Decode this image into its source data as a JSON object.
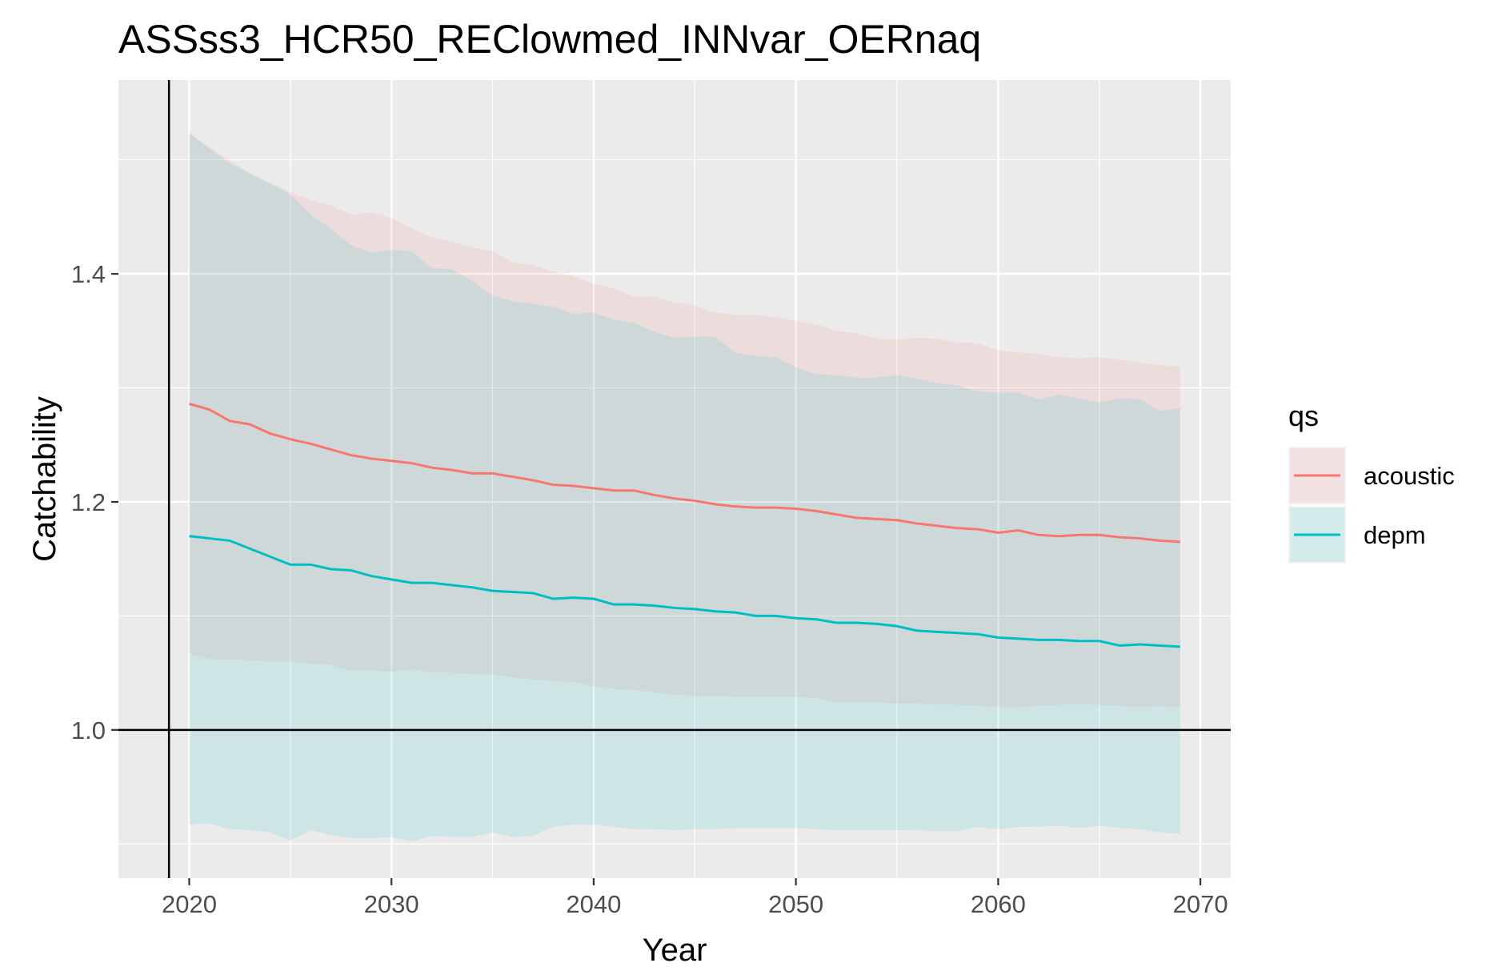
{
  "chart_data": {
    "type": "line",
    "title": "ASSss3_HCR50_REClowmed_INNvar_OERnaq",
    "xlabel": "Year",
    "ylabel": "Catchability",
    "xlim": [
      2016.5,
      2071.5
    ],
    "ylim": [
      0.87,
      1.57
    ],
    "x_ticks": [
      2020,
      2030,
      2040,
      2050,
      2060,
      2070
    ],
    "x_tick_labels": [
      "2020",
      "2030",
      "2040",
      "2050",
      "2060",
      "2070"
    ],
    "y_ticks": [
      1.0,
      1.2,
      1.4
    ],
    "y_tick_labels": [
      "1.0",
      "1.2",
      "1.4"
    ],
    "grid": true,
    "reference_lines": {
      "vertical_x": 2019,
      "horizontal_y": 1.0
    },
    "legend": {
      "title": "qs",
      "position": "right"
    },
    "x": [
      2020,
      2021,
      2022,
      2023,
      2024,
      2025,
      2026,
      2027,
      2028,
      2029,
      2030,
      2031,
      2032,
      2033,
      2034,
      2035,
      2036,
      2037,
      2038,
      2039,
      2040,
      2041,
      2042,
      2043,
      2044,
      2045,
      2046,
      2047,
      2048,
      2049,
      2050,
      2051,
      2052,
      2053,
      2054,
      2055,
      2056,
      2057,
      2058,
      2059,
      2060,
      2061,
      2062,
      2063,
      2064,
      2065,
      2066,
      2067,
      2068,
      2069
    ],
    "series": [
      {
        "name": "acoustic",
        "color": "#F8766D",
        "fill": "#F8766D",
        "values": [
          1.286,
          1.281,
          1.271,
          1.268,
          1.26,
          1.255,
          1.251,
          1.246,
          1.241,
          1.238,
          1.236,
          1.234,
          1.23,
          1.228,
          1.225,
          1.225,
          1.222,
          1.219,
          1.215,
          1.214,
          1.212,
          1.21,
          1.21,
          1.206,
          1.203,
          1.201,
          1.198,
          1.196,
          1.195,
          1.195,
          1.194,
          1.192,
          1.189,
          1.186,
          1.185,
          1.184,
          1.181,
          1.179,
          1.177,
          1.176,
          1.173,
          1.175,
          1.171,
          1.17,
          1.171,
          1.171,
          1.169,
          1.168,
          1.166,
          1.165
        ],
        "lower": [
          1.067,
          1.062,
          1.062,
          1.061,
          1.06,
          1.06,
          1.058,
          1.057,
          1.052,
          1.052,
          1.051,
          1.053,
          1.05,
          1.05,
          1.049,
          1.049,
          1.046,
          1.044,
          1.043,
          1.042,
          1.038,
          1.036,
          1.035,
          1.033,
          1.031,
          1.03,
          1.03,
          1.029,
          1.029,
          1.029,
          1.029,
          1.028,
          1.024,
          1.024,
          1.024,
          1.023,
          1.023,
          1.022,
          1.022,
          1.021,
          1.02,
          1.02,
          1.021,
          1.022,
          1.022,
          1.022,
          1.021,
          1.02,
          1.021,
          1.02
        ],
        "upper": [
          1.523,
          1.511,
          1.5,
          1.488,
          1.48,
          1.472,
          1.465,
          1.46,
          1.452,
          1.454,
          1.449,
          1.44,
          1.432,
          1.428,
          1.423,
          1.42,
          1.41,
          1.408,
          1.402,
          1.398,
          1.391,
          1.387,
          1.38,
          1.38,
          1.375,
          1.372,
          1.366,
          1.364,
          1.364,
          1.362,
          1.359,
          1.356,
          1.35,
          1.348,
          1.343,
          1.342,
          1.344,
          1.343,
          1.34,
          1.339,
          1.333,
          1.331,
          1.33,
          1.327,
          1.326,
          1.327,
          1.325,
          1.322,
          1.32,
          1.319
        ]
      },
      {
        "name": "depm",
        "color": "#00BFC4",
        "fill": "#00BFC4",
        "values": [
          1.17,
          1.168,
          1.166,
          1.159,
          1.152,
          1.145,
          1.145,
          1.141,
          1.14,
          1.135,
          1.132,
          1.129,
          1.129,
          1.127,
          1.125,
          1.122,
          1.121,
          1.12,
          1.115,
          1.116,
          1.115,
          1.11,
          1.11,
          1.109,
          1.107,
          1.106,
          1.104,
          1.103,
          1.1,
          1.1,
          1.098,
          1.097,
          1.094,
          1.094,
          1.093,
          1.091,
          1.087,
          1.086,
          1.085,
          1.084,
          1.081,
          1.08,
          1.079,
          1.079,
          1.078,
          1.078,
          1.074,
          1.075,
          1.074,
          1.073
        ],
        "lower": [
          0.917,
          0.918,
          0.913,
          0.912,
          0.91,
          0.903,
          0.912,
          0.908,
          0.905,
          0.905,
          0.906,
          0.902,
          0.907,
          0.906,
          0.906,
          0.91,
          0.906,
          0.907,
          0.915,
          0.917,
          0.917,
          0.915,
          0.913,
          0.913,
          0.912,
          0.913,
          0.913,
          0.914,
          0.914,
          0.914,
          0.914,
          0.913,
          0.912,
          0.912,
          0.912,
          0.912,
          0.912,
          0.911,
          0.911,
          0.915,
          0.913,
          0.915,
          0.915,
          0.916,
          0.914,
          0.916,
          0.914,
          0.913,
          0.91,
          0.909
        ],
        "upper": [
          1.524,
          1.51,
          1.497,
          1.488,
          1.479,
          1.47,
          1.452,
          1.44,
          1.425,
          1.419,
          1.421,
          1.42,
          1.405,
          1.404,
          1.394,
          1.381,
          1.376,
          1.374,
          1.371,
          1.365,
          1.366,
          1.36,
          1.357,
          1.349,
          1.344,
          1.345,
          1.345,
          1.331,
          1.328,
          1.327,
          1.318,
          1.312,
          1.311,
          1.309,
          1.309,
          1.311,
          1.308,
          1.304,
          1.302,
          1.297,
          1.296,
          1.296,
          1.29,
          1.294,
          1.291,
          1.287,
          1.291,
          1.29,
          1.28,
          1.282
        ]
      }
    ]
  }
}
